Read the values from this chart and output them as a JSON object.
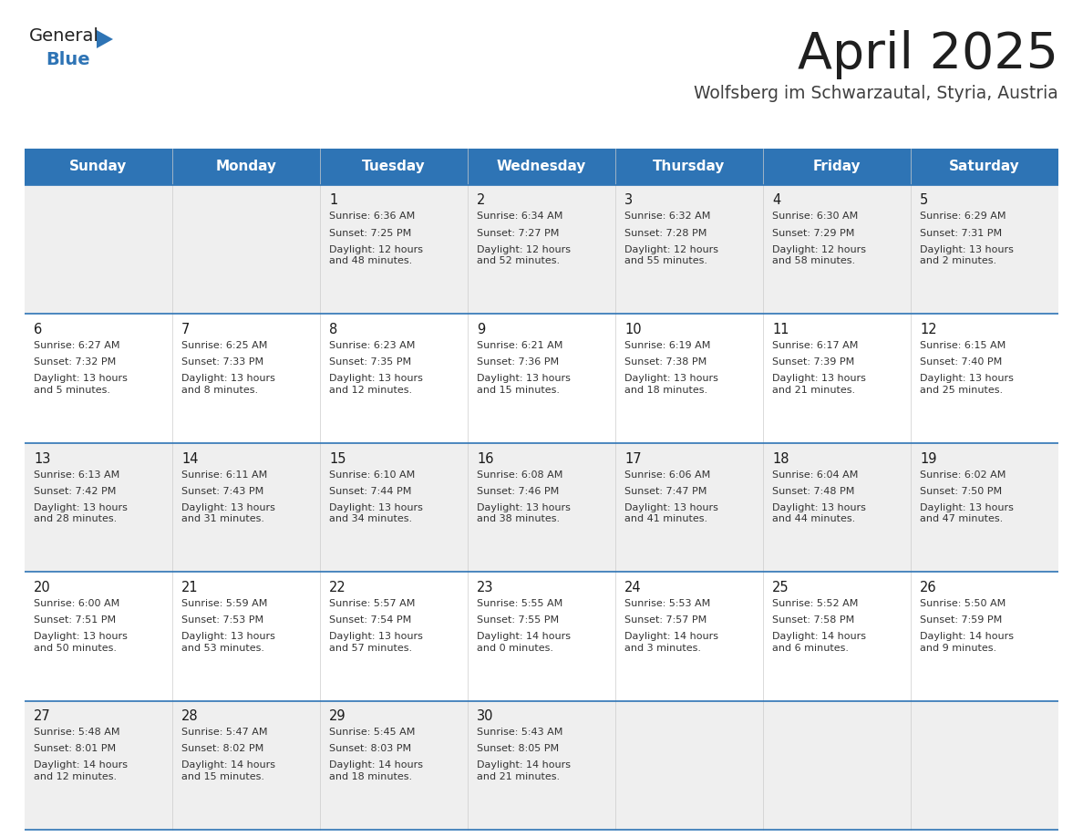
{
  "title": "April 2025",
  "subtitle": "Wolfsberg im Schwarzautal, Styria, Austria",
  "header_bg": "#2E74B5",
  "header_text_color": "#FFFFFF",
  "cell_bg_odd": "#EFEFEF",
  "cell_bg_even": "#FFFFFF",
  "title_color": "#1F1F1F",
  "subtitle_color": "#404040",
  "day_number_color": "#1A1A1A",
  "cell_text_color": "#333333",
  "border_color": "#2E74B5",
  "days_of_week": [
    "Sunday",
    "Monday",
    "Tuesday",
    "Wednesday",
    "Thursday",
    "Friday",
    "Saturday"
  ],
  "weeks": [
    [
      {
        "day": "",
        "sunrise": "",
        "sunset": "",
        "daylight": ""
      },
      {
        "day": "",
        "sunrise": "",
        "sunset": "",
        "daylight": ""
      },
      {
        "day": "1",
        "sunrise": "Sunrise: 6:36 AM",
        "sunset": "Sunset: 7:25 PM",
        "daylight": "Daylight: 12 hours\nand 48 minutes."
      },
      {
        "day": "2",
        "sunrise": "Sunrise: 6:34 AM",
        "sunset": "Sunset: 7:27 PM",
        "daylight": "Daylight: 12 hours\nand 52 minutes."
      },
      {
        "day": "3",
        "sunrise": "Sunrise: 6:32 AM",
        "sunset": "Sunset: 7:28 PM",
        "daylight": "Daylight: 12 hours\nand 55 minutes."
      },
      {
        "day": "4",
        "sunrise": "Sunrise: 6:30 AM",
        "sunset": "Sunset: 7:29 PM",
        "daylight": "Daylight: 12 hours\nand 58 minutes."
      },
      {
        "day": "5",
        "sunrise": "Sunrise: 6:29 AM",
        "sunset": "Sunset: 7:31 PM",
        "daylight": "Daylight: 13 hours\nand 2 minutes."
      }
    ],
    [
      {
        "day": "6",
        "sunrise": "Sunrise: 6:27 AM",
        "sunset": "Sunset: 7:32 PM",
        "daylight": "Daylight: 13 hours\nand 5 minutes."
      },
      {
        "day": "7",
        "sunrise": "Sunrise: 6:25 AM",
        "sunset": "Sunset: 7:33 PM",
        "daylight": "Daylight: 13 hours\nand 8 minutes."
      },
      {
        "day": "8",
        "sunrise": "Sunrise: 6:23 AM",
        "sunset": "Sunset: 7:35 PM",
        "daylight": "Daylight: 13 hours\nand 12 minutes."
      },
      {
        "day": "9",
        "sunrise": "Sunrise: 6:21 AM",
        "sunset": "Sunset: 7:36 PM",
        "daylight": "Daylight: 13 hours\nand 15 minutes."
      },
      {
        "day": "10",
        "sunrise": "Sunrise: 6:19 AM",
        "sunset": "Sunset: 7:38 PM",
        "daylight": "Daylight: 13 hours\nand 18 minutes."
      },
      {
        "day": "11",
        "sunrise": "Sunrise: 6:17 AM",
        "sunset": "Sunset: 7:39 PM",
        "daylight": "Daylight: 13 hours\nand 21 minutes."
      },
      {
        "day": "12",
        "sunrise": "Sunrise: 6:15 AM",
        "sunset": "Sunset: 7:40 PM",
        "daylight": "Daylight: 13 hours\nand 25 minutes."
      }
    ],
    [
      {
        "day": "13",
        "sunrise": "Sunrise: 6:13 AM",
        "sunset": "Sunset: 7:42 PM",
        "daylight": "Daylight: 13 hours\nand 28 minutes."
      },
      {
        "day": "14",
        "sunrise": "Sunrise: 6:11 AM",
        "sunset": "Sunset: 7:43 PM",
        "daylight": "Daylight: 13 hours\nand 31 minutes."
      },
      {
        "day": "15",
        "sunrise": "Sunrise: 6:10 AM",
        "sunset": "Sunset: 7:44 PM",
        "daylight": "Daylight: 13 hours\nand 34 minutes."
      },
      {
        "day": "16",
        "sunrise": "Sunrise: 6:08 AM",
        "sunset": "Sunset: 7:46 PM",
        "daylight": "Daylight: 13 hours\nand 38 minutes."
      },
      {
        "day": "17",
        "sunrise": "Sunrise: 6:06 AM",
        "sunset": "Sunset: 7:47 PM",
        "daylight": "Daylight: 13 hours\nand 41 minutes."
      },
      {
        "day": "18",
        "sunrise": "Sunrise: 6:04 AM",
        "sunset": "Sunset: 7:48 PM",
        "daylight": "Daylight: 13 hours\nand 44 minutes."
      },
      {
        "day": "19",
        "sunrise": "Sunrise: 6:02 AM",
        "sunset": "Sunset: 7:50 PM",
        "daylight": "Daylight: 13 hours\nand 47 minutes."
      }
    ],
    [
      {
        "day": "20",
        "sunrise": "Sunrise: 6:00 AM",
        "sunset": "Sunset: 7:51 PM",
        "daylight": "Daylight: 13 hours\nand 50 minutes."
      },
      {
        "day": "21",
        "sunrise": "Sunrise: 5:59 AM",
        "sunset": "Sunset: 7:53 PM",
        "daylight": "Daylight: 13 hours\nand 53 minutes."
      },
      {
        "day": "22",
        "sunrise": "Sunrise: 5:57 AM",
        "sunset": "Sunset: 7:54 PM",
        "daylight": "Daylight: 13 hours\nand 57 minutes."
      },
      {
        "day": "23",
        "sunrise": "Sunrise: 5:55 AM",
        "sunset": "Sunset: 7:55 PM",
        "daylight": "Daylight: 14 hours\nand 0 minutes."
      },
      {
        "day": "24",
        "sunrise": "Sunrise: 5:53 AM",
        "sunset": "Sunset: 7:57 PM",
        "daylight": "Daylight: 14 hours\nand 3 minutes."
      },
      {
        "day": "25",
        "sunrise": "Sunrise: 5:52 AM",
        "sunset": "Sunset: 7:58 PM",
        "daylight": "Daylight: 14 hours\nand 6 minutes."
      },
      {
        "day": "26",
        "sunrise": "Sunrise: 5:50 AM",
        "sunset": "Sunset: 7:59 PM",
        "daylight": "Daylight: 14 hours\nand 9 minutes."
      }
    ],
    [
      {
        "day": "27",
        "sunrise": "Sunrise: 5:48 AM",
        "sunset": "Sunset: 8:01 PM",
        "daylight": "Daylight: 14 hours\nand 12 minutes."
      },
      {
        "day": "28",
        "sunrise": "Sunrise: 5:47 AM",
        "sunset": "Sunset: 8:02 PM",
        "daylight": "Daylight: 14 hours\nand 15 minutes."
      },
      {
        "day": "29",
        "sunrise": "Sunrise: 5:45 AM",
        "sunset": "Sunset: 8:03 PM",
        "daylight": "Daylight: 14 hours\nand 18 minutes."
      },
      {
        "day": "30",
        "sunrise": "Sunrise: 5:43 AM",
        "sunset": "Sunset: 8:05 PM",
        "daylight": "Daylight: 14 hours\nand 21 minutes."
      },
      {
        "day": "",
        "sunrise": "",
        "sunset": "",
        "daylight": ""
      },
      {
        "day": "",
        "sunrise": "",
        "sunset": "",
        "daylight": ""
      },
      {
        "day": "",
        "sunrise": "",
        "sunset": "",
        "daylight": ""
      }
    ]
  ],
  "logo_general_color": "#222222",
  "logo_blue_color": "#2E74B5"
}
